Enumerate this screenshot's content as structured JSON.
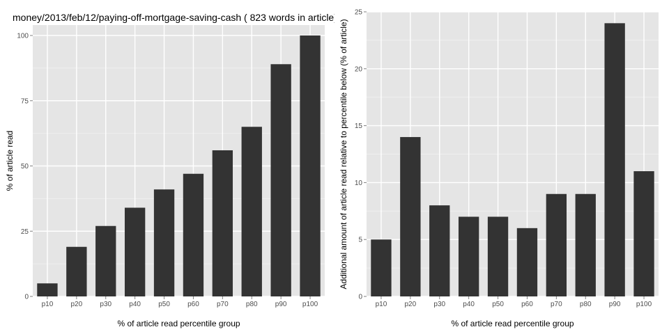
{
  "chart_data": [
    {
      "type": "bar",
      "title": "money/2013/feb/12/paying-off-mortgage-saving-cash ( 823 words in article)",
      "xlabel": "% of article read percentile group",
      "ylabel": "% of article read",
      "categories": [
        "p10",
        "p20",
        "p30",
        "p40",
        "p50",
        "p60",
        "p70",
        "p80",
        "p90",
        "p100"
      ],
      "values": [
        5,
        19,
        27,
        34,
        41,
        47,
        56,
        65,
        89,
        100
      ],
      "ylim": [
        0,
        104
      ],
      "yticks": [
        0,
        25,
        50,
        75,
        100
      ],
      "bar_color": "#333333",
      "panel_color": "#e5e5e5",
      "grid": true
    },
    {
      "type": "bar",
      "title": "",
      "xlabel": "% of article read percentile group",
      "ylabel": "Additional amount of article read relative to percentile below (% of article)",
      "categories": [
        "p10",
        "p20",
        "p30",
        "p40",
        "p50",
        "p60",
        "p70",
        "p80",
        "p90",
        "p100"
      ],
      "values": [
        5,
        14,
        8,
        7,
        7,
        6,
        9,
        9,
        24,
        11
      ],
      "ylim": [
        0,
        25
      ],
      "yticks": [
        0,
        5,
        10,
        15,
        20,
        25
      ],
      "bar_color": "#333333",
      "panel_color": "#e5e5e5",
      "grid": true
    }
  ]
}
